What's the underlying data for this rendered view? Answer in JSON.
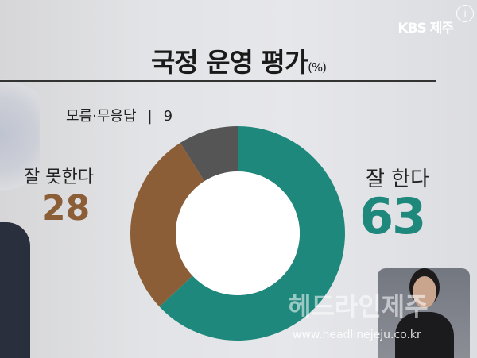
{
  "broadcaster_logo": "KBS 제주",
  "info_badge": "i",
  "chart_data": {
    "type": "pie",
    "donut": true,
    "title": "국정 운영 평가",
    "unit": "(%)",
    "categories": [
      "잘 한다",
      "잘 못한다",
      "모름·무응답"
    ],
    "values": [
      63,
      28,
      9
    ],
    "colors": [
      "#1f887c",
      "#8c5e37",
      "#555555"
    ],
    "start": "top",
    "direction": "clockwise"
  },
  "labels": {
    "dk_label": "모름·무응답",
    "dk_sep": "|",
    "dk_value": "9",
    "neg_label": "잘 못한다",
    "neg_value": "28",
    "pos_label": "잘 한다",
    "pos_value": "63"
  },
  "watermark": {
    "text": "헤드라인제주",
    "url": "www.headlinejeju.co.kr"
  }
}
